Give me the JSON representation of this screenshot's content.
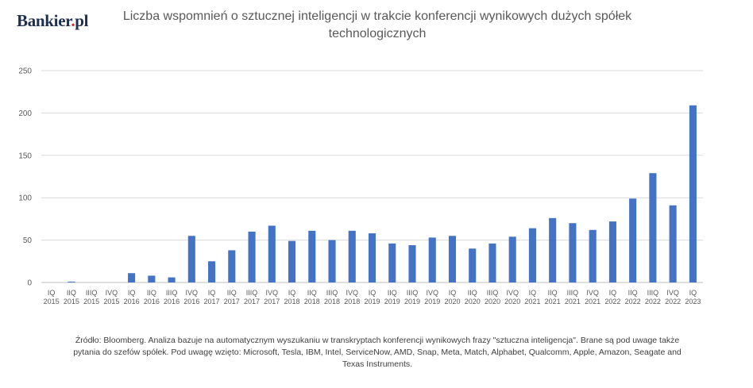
{
  "brand": {
    "name_main": "Bankier",
    "name_dot": ".",
    "name_tld": "pl"
  },
  "chart_data": {
    "type": "bar",
    "title": "Liczba wspomnień o sztucznej inteligencji w trakcie konferencji wynikowych dużych spółek technologicznych",
    "xlabel": "",
    "ylabel": "",
    "ylim": [
      0,
      250
    ],
    "yticks": [
      0,
      50,
      100,
      150,
      200,
      250
    ],
    "grid": true,
    "color": "#4472c4",
    "categories": [
      "IQ 2015",
      "IIQ 2015",
      "IIIQ 2015",
      "IVQ 2015",
      "IQ 2016",
      "IIQ 2016",
      "IIIQ 2016",
      "IVQ 2016",
      "IQ 2017",
      "IIQ 2017",
      "IIIQ 2017",
      "IVQ 2017",
      "IQ 2018",
      "IIQ 2018",
      "IIIQ 2018",
      "IVQ 2018",
      "IQ 2019",
      "IIQ 2019",
      "IIIQ 2019",
      "IVQ 2019",
      "IQ 2020",
      "IIQ 2020",
      "IIIQ 2020",
      "IVQ 2020",
      "IQ 2021",
      "IIQ 2021",
      "IIIQ 2021",
      "IVQ 2021",
      "IQ 2022",
      "IIQ 2022",
      "IIIQ 2022",
      "IVQ 2022",
      "IQ 2023"
    ],
    "values": [
      0,
      1,
      0,
      0,
      11,
      8,
      6,
      55,
      25,
      38,
      60,
      67,
      49,
      61,
      50,
      61,
      58,
      46,
      44,
      53,
      55,
      40,
      46,
      54,
      64,
      76,
      70,
      62,
      72,
      99,
      129,
      91,
      209
    ]
  },
  "source_note": "Źródło: Bloomberg. Analiza bazuje na automatycznym wyszukaniu w transkryptach konferencji wynikowych frazy \"sztuczna inteligencja\". Brane są pod uwage także pytania do szefów spółek. Pod uwagę wzięto: Microsoft, Tesla, IBM, Intel, ServiceNow, AMD, Snap, Meta, Match, Alphabet, Qualcomm, Apple, Amazon, Seagate and Texas Instruments."
}
